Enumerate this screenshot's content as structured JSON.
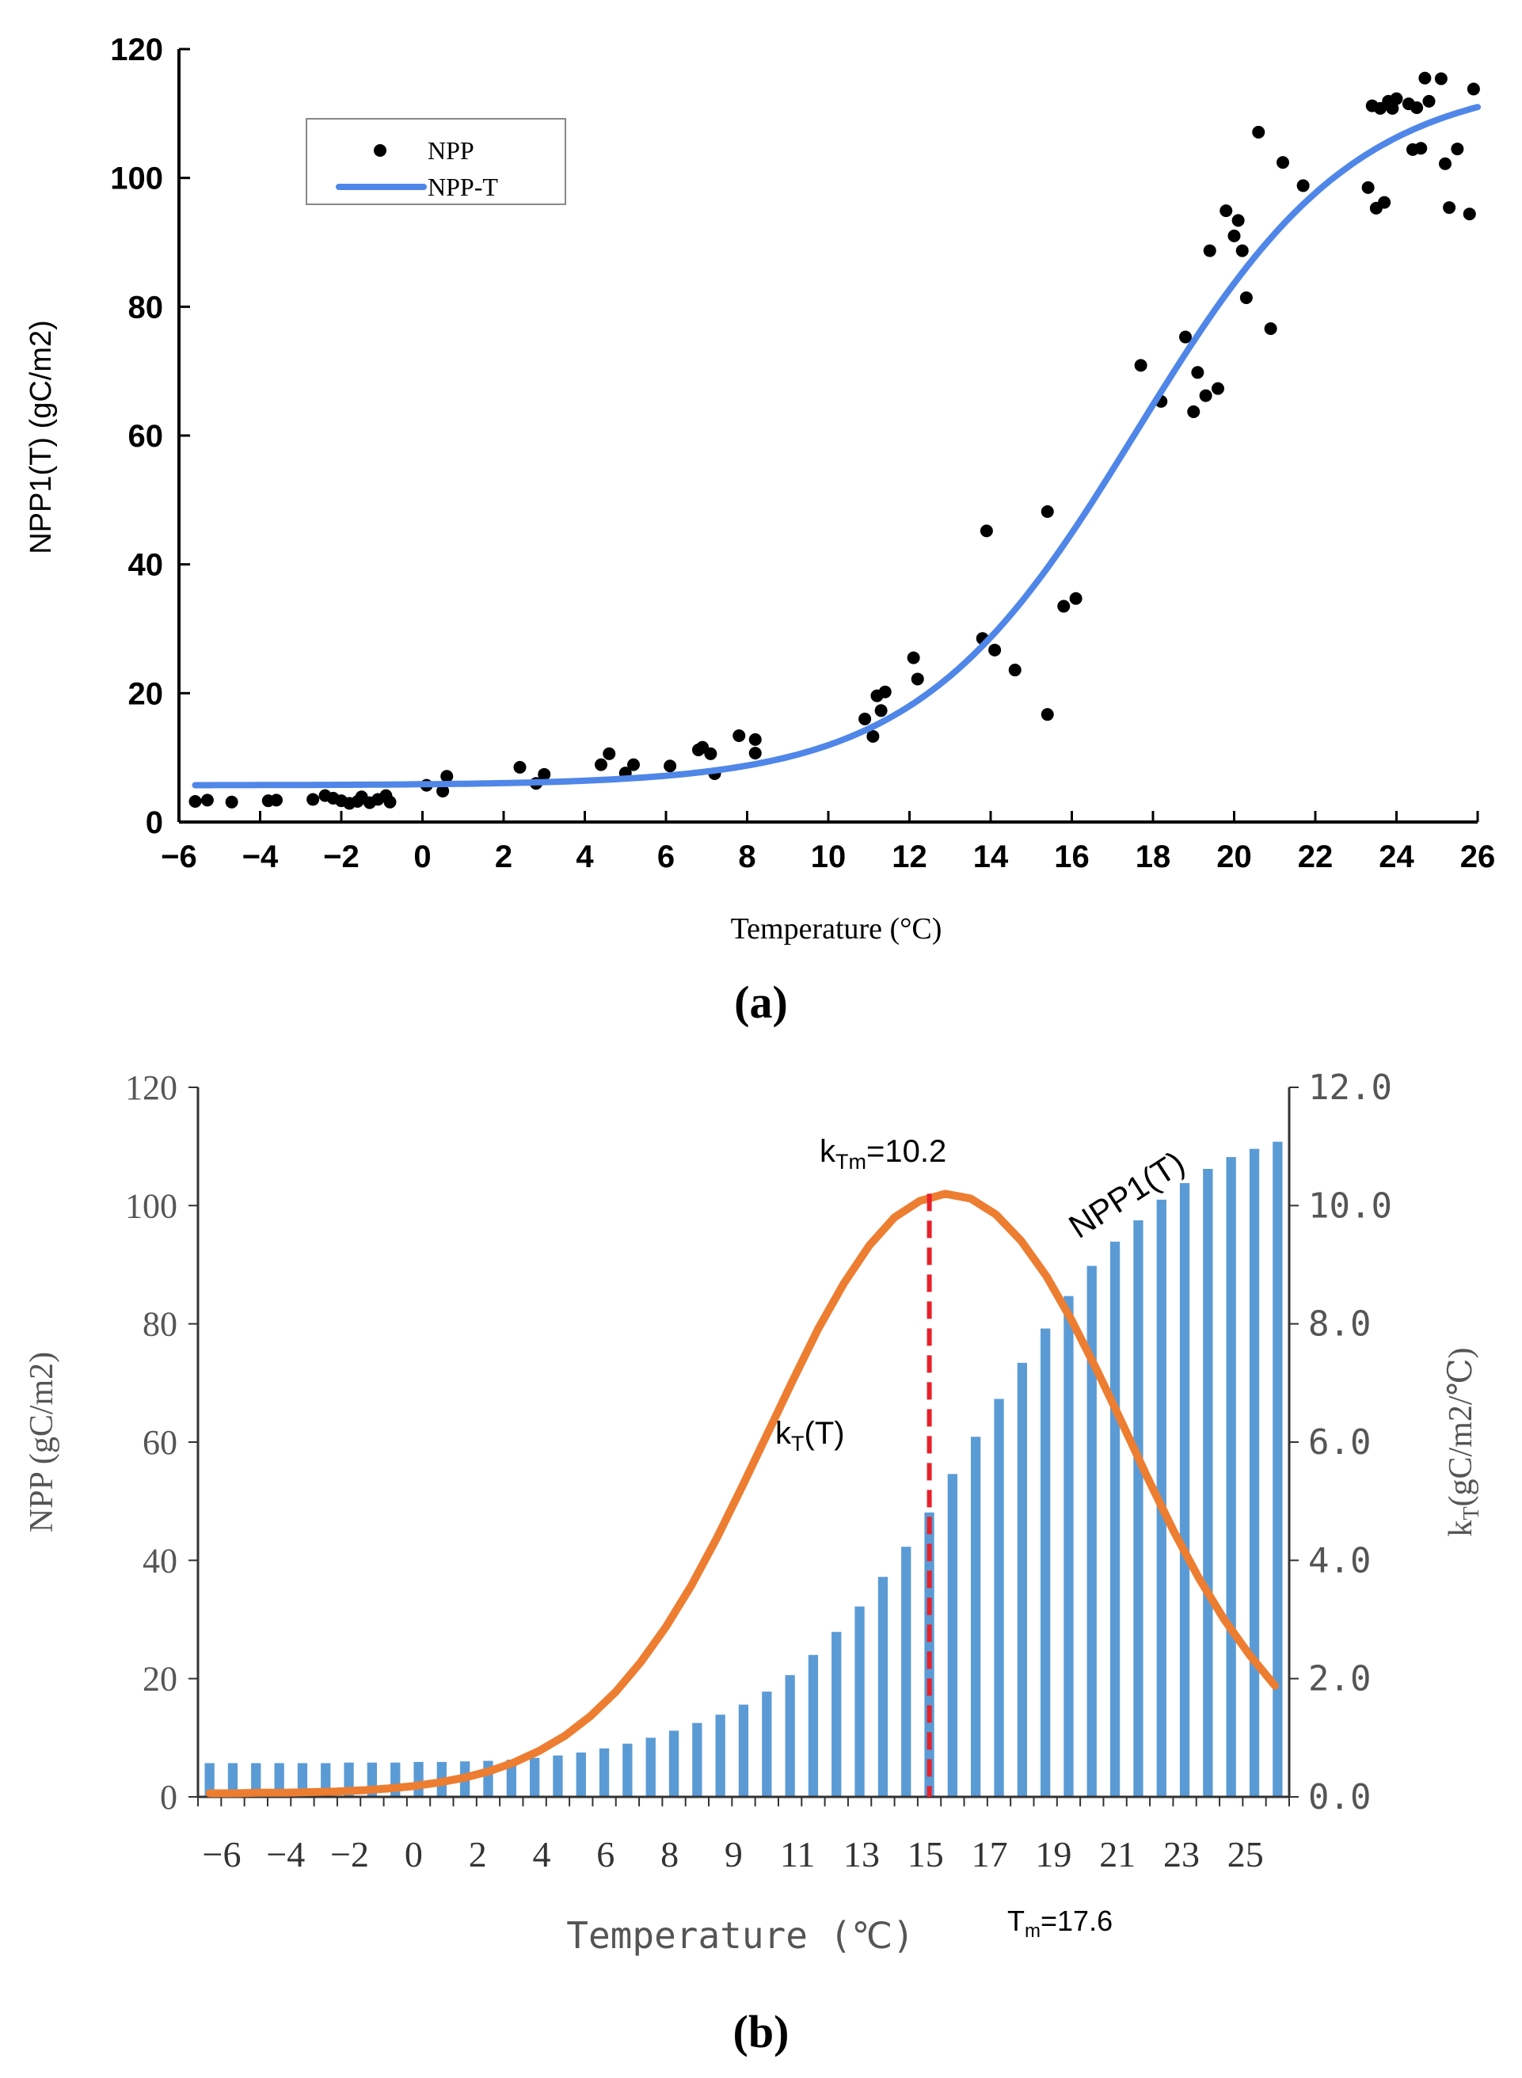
{
  "colors": {
    "npp_points": "#000000",
    "npp_curve": "#4f86e8",
    "bars": "#5b9bd5",
    "kt_curve": "#ed7d31",
    "tm_line": "#e8202a",
    "axis_text_b": "#555555"
  },
  "chart_data": [
    {
      "type": "scatter",
      "panel_label": "(a)",
      "xlabel": "Temperature (°C)",
      "ylabel": "NPP1(T) (gC/m2)",
      "xlim": [
        -6,
        26
      ],
      "ylim": [
        0,
        120
      ],
      "x_ticks": [
        "−6",
        "−4",
        "−2",
        "0",
        "2",
        "4",
        "6",
        "8",
        "10",
        "12",
        "14",
        "16",
        "18",
        "20",
        "22",
        "24",
        "26"
      ],
      "y_ticks": [
        "0",
        "20",
        "40",
        "60",
        "80",
        "100",
        "120"
      ],
      "legend": {
        "placement": "top-left",
        "points_label": "NPP",
        "line_label": "NPP-T"
      },
      "series": [
        {
          "name": "NPP",
          "kind": "points",
          "points": [
            [
              -5.6,
              3.2
            ],
            [
              -5.3,
              3.4
            ],
            [
              -4.7,
              3.1
            ],
            [
              -3.8,
              3.3
            ],
            [
              -3.6,
              3.4
            ],
            [
              -2.7,
              3.5
            ],
            [
              -2.4,
              4.1
            ],
            [
              -2.2,
              3.7
            ],
            [
              -2.0,
              3.3
            ],
            [
              -1.8,
              2.9
            ],
            [
              -1.6,
              3.2
            ],
            [
              -1.5,
              3.9
            ],
            [
              -1.3,
              3.0
            ],
            [
              -1.1,
              3.5
            ],
            [
              -0.9,
              4.1
            ],
            [
              -0.8,
              3.1
            ],
            [
              0.1,
              5.7
            ],
            [
              0.5,
              4.8
            ],
            [
              0.6,
              7.1
            ],
            [
              2.4,
              8.5
            ],
            [
              2.8,
              6.0
            ],
            [
              3.0,
              7.4
            ],
            [
              4.4,
              8.9
            ],
            [
              4.6,
              10.6
            ],
            [
              5.0,
              7.6
            ],
            [
              5.2,
              8.9
            ],
            [
              6.1,
              8.7
            ],
            [
              6.8,
              11.2
            ],
            [
              6.9,
              11.6
            ],
            [
              7.1,
              10.6
            ],
            [
              7.2,
              7.5
            ],
            [
              7.8,
              13.4
            ],
            [
              8.2,
              12.8
            ],
            [
              8.2,
              10.7
            ],
            [
              10.9,
              16.0
            ],
            [
              11.1,
              13.3
            ],
            [
              11.2,
              19.6
            ],
            [
              11.3,
              17.3
            ],
            [
              11.4,
              20.2
            ],
            [
              12.1,
              25.5
            ],
            [
              12.2,
              22.2
            ],
            [
              13.8,
              28.5
            ],
            [
              13.9,
              45.2
            ],
            [
              14.1,
              26.7
            ],
            [
              14.6,
              23.6
            ],
            [
              15.4,
              16.7
            ],
            [
              15.4,
              48.2
            ],
            [
              15.8,
              33.5
            ],
            [
              16.1,
              34.7
            ],
            [
              17.7,
              70.9
            ],
            [
              18.2,
              65.3
            ],
            [
              18.8,
              75.3
            ],
            [
              19.0,
              63.7
            ],
            [
              19.1,
              69.8
            ],
            [
              19.3,
              66.2
            ],
            [
              19.4,
              88.7
            ],
            [
              19.6,
              67.3
            ],
            [
              19.8,
              94.9
            ],
            [
              20.0,
              91.0
            ],
            [
              20.1,
              93.4
            ],
            [
              20.2,
              88.7
            ],
            [
              20.3,
              81.4
            ],
            [
              20.6,
              107.1
            ],
            [
              20.9,
              76.6
            ],
            [
              21.2,
              102.4
            ],
            [
              21.7,
              98.8
            ],
            [
              23.3,
              98.5
            ],
            [
              23.4,
              111.2
            ],
            [
              23.5,
              95.3
            ],
            [
              23.6,
              110.8
            ],
            [
              23.7,
              96.2
            ],
            [
              23.8,
              111.9
            ],
            [
              23.9,
              110.8
            ],
            [
              24.0,
              112.3
            ],
            [
              24.3,
              111.5
            ],
            [
              24.4,
              104.4
            ],
            [
              24.5,
              110.9
            ],
            [
              24.6,
              104.6
            ],
            [
              24.7,
              115.5
            ],
            [
              24.8,
              111.9
            ],
            [
              25.1,
              115.4
            ],
            [
              25.2,
              102.2
            ],
            [
              25.3,
              95.4
            ],
            [
              25.5,
              104.5
            ],
            [
              25.8,
              94.4
            ],
            [
              25.9,
              113.8
            ]
          ]
        },
        {
          "name": "NPP-T",
          "kind": "logistic-curve",
          "params": {
            "base": 5.7,
            "amplitude": 110,
            "midpoint": 17.6,
            "rate": 0.37
          }
        }
      ]
    },
    {
      "type": "bar",
      "panel_label": "(b)",
      "xlabel": "Temperature (℃)",
      "ylabel_left": "NPP (gC/m2)",
      "ylabel_right_main": "k",
      "ylabel_right_sub": "T",
      "ylabel_right_rest": "(gC/m2/℃)",
      "ylim_left": [
        0,
        120
      ],
      "ylim_right": [
        0,
        12
      ],
      "y_ticks_left": [
        "0",
        "20",
        "40",
        "60",
        "80",
        "100",
        "120"
      ],
      "y_ticks_right": [
        "0.0",
        "2.0",
        "4.0",
        "6.0",
        "8.0",
        "10.0",
        "12.0"
      ],
      "x_tick_labels": [
        "−6",
        "−4",
        "−2",
        "0",
        "2",
        "4",
        "6",
        "8",
        "9",
        "11",
        "13",
        "15",
        "17",
        "19",
        "21",
        "23",
        "25"
      ],
      "annotations": {
        "ktm_main": "k",
        "ktm_sub": "Tm",
        "ktm_rest": "=10.2",
        "tm_main": "T",
        "tm_sub": "m",
        "tm_rest": "=17.6",
        "npp1_label": "NPP1(T)",
        "kt_main": "k",
        "kt_sub": "T",
        "kt_rest": "(T)"
      },
      "series": [
        {
          "name": "NPP1(T)",
          "kind": "bars",
          "values": [
            5.7,
            5.7,
            5.7,
            5.7,
            5.7,
            5.7,
            5.8,
            5.8,
            5.8,
            5.9,
            5.9,
            6.0,
            6.1,
            6.3,
            6.6,
            7.0,
            7.5,
            8.2,
            9.0,
            10.0,
            11.2,
            12.5,
            13.9,
            15.6,
            17.8,
            20.6,
            24.0,
            27.9,
            32.2,
            37.2,
            42.3,
            48.1,
            54.6,
            60.9,
            67.3,
            73.4,
            79.2,
            84.7,
            89.8,
            93.9,
            97.5,
            101.0,
            103.8,
            106.2,
            108.2,
            109.6,
            110.8
          ]
        },
        {
          "name": "kT(T)",
          "kind": "curve",
          "peak": 10.2,
          "peak_at_bar": 31.5,
          "points_kt": [
            0.06,
            0.06,
            0.07,
            0.07,
            0.08,
            0.09,
            0.11,
            0.14,
            0.18,
            0.24,
            0.32,
            0.43,
            0.58,
            0.78,
            1.03,
            1.36,
            1.77,
            2.28,
            2.88,
            3.58,
            4.38,
            5.25,
            6.15,
            7.05,
            7.92,
            8.68,
            9.32,
            9.8,
            10.08,
            10.2,
            10.12,
            9.85,
            9.4,
            8.8,
            8.05,
            7.2,
            6.3,
            5.38,
            4.5,
            3.7,
            3.0,
            2.4,
            1.88
          ]
        }
      ]
    }
  ]
}
